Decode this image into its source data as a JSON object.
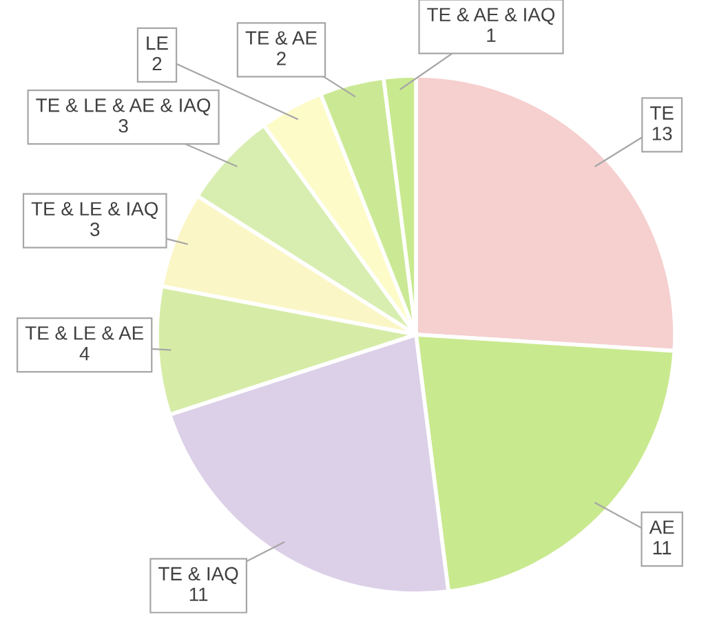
{
  "chart_data": {
    "type": "pie",
    "categories": [
      "TE",
      "AE",
      "TE & IAQ",
      "TE & LE & AE",
      "TE & LE & IAQ",
      "TE & LE & AE & IAQ",
      "LE",
      "TE & AE",
      "TE & AE & IAQ"
    ],
    "values": [
      13,
      11,
      11,
      4,
      3,
      3,
      2,
      2,
      1
    ],
    "colors": [
      "#f6cfcf",
      "#c9e98f",
      "#dcd0e8",
      "#d6eca6",
      "#fbf6c6",
      "#d8eeb0",
      "#fdfbc8",
      "#cbe995",
      "#c9e98f"
    ],
    "data_labels": true
  }
}
